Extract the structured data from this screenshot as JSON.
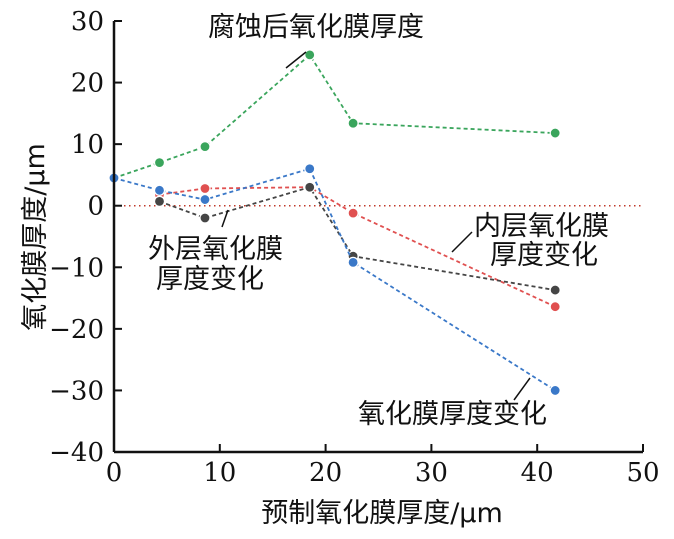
{
  "chart_data": {
    "type": "line",
    "title": "",
    "xlabel": "预制氧化膜厚度/μm",
    "ylabel": "氧化膜厚度/μm",
    "xlim": [
      0,
      50
    ],
    "ylim": [
      -40,
      30
    ],
    "xticks": [
      "0",
      "10",
      "20",
      "30",
      "40",
      "50"
    ],
    "yticks": [
      "30",
      "20",
      "10",
      "0",
      "−10",
      "−20",
      "−30",
      "−40"
    ],
    "grid": false,
    "legend": "none",
    "reference_line": {
      "y": 0,
      "color": "#c0392b",
      "style": "dotted"
    },
    "series": [
      {
        "color": "#3aa55c",
        "label_lines": [
          "腐蚀后氧化膜厚度"
        ],
        "x": [
          0,
          4.3,
          8.6,
          18.5,
          22.6,
          41.7
        ],
        "y": [
          4.5,
          7.0,
          9.6,
          24.5,
          13.4,
          11.8
        ]
      },
      {
        "color": "#e05050",
        "label_lines": [
          "内层氧化膜",
          "厚度变化"
        ],
        "x": [
          4.3,
          8.6,
          18.5,
          22.6,
          41.7
        ],
        "y": [
          1.8,
          2.8,
          3.0,
          -1.2,
          -16.4
        ]
      },
      {
        "color": "#454545",
        "label_lines": [
          "外层氧化膜",
          "厚度变化"
        ],
        "x": [
          4.3,
          8.6,
          18.5,
          22.6,
          41.7
        ],
        "y": [
          0.7,
          -2.0,
          3.0,
          -8.2,
          -13.7
        ]
      },
      {
        "color": "#3a78c8",
        "label_lines": [
          "氧化膜厚度变化"
        ],
        "x": [
          0,
          4.3,
          8.6,
          18.5,
          22.6,
          41.7
        ],
        "y": [
          4.5,
          2.5,
          1.0,
          6.0,
          -9.2,
          -30.0
        ]
      }
    ]
  }
}
